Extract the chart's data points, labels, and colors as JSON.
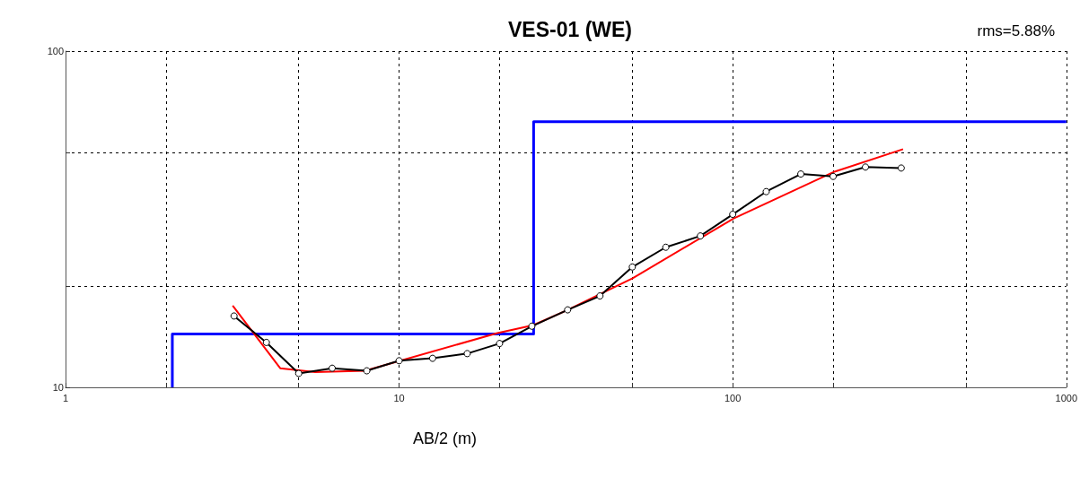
{
  "chart_data": {
    "type": "line",
    "title": "VES-01 (WE)",
    "xlabel": "AB/2 (m)",
    "annotations": [
      "rms=5.88%"
    ],
    "log": "xy",
    "xlim": [
      1,
      1000
    ],
    "ylim": [
      10,
      100
    ],
    "xticks": [
      1,
      {
        "value": 2,
        "label": null
      },
      {
        "value": 5,
        "label": null
      },
      10,
      {
        "value": 20,
        "label": null
      },
      {
        "value": 50,
        "label": null
      },
      100,
      {
        "value": 200,
        "label": null
      },
      {
        "value": 500,
        "label": null
      },
      1000
    ],
    "yticks": [
      10,
      {
        "value": 20,
        "label": null
      },
      {
        "value": 50,
        "label": null
      },
      100
    ],
    "grid": true,
    "series": [
      {
        "color": "#0000ff",
        "marker": "none",
        "x": [
          2.09,
          2.09,
          25.3,
          25.3,
          1000
        ],
        "values": [
          10,
          14.4,
          14.4,
          61.7,
          61.7
        ]
      },
      {
        "color": "#000000",
        "marker": "circle",
        "x": [
          3.2,
          4,
          5,
          6.3,
          8,
          10,
          12.6,
          16,
          20,
          25,
          32,
          40,
          50,
          63,
          80,
          100,
          126,
          160,
          200,
          250,
          320
        ],
        "values": [
          16.3,
          13.6,
          11.0,
          11.4,
          11.2,
          12.0,
          12.2,
          12.6,
          13.5,
          15.2,
          17.0,
          18.7,
          22.8,
          26.1,
          28.2,
          32.7,
          38.2,
          43.1,
          42.4,
          45.2,
          44.9
        ]
      },
      {
        "color": "#ff0000",
        "marker": "none",
        "x": [
          3.17,
          4.4,
          5.6,
          7.9,
          19.7,
          25.2,
          31.6,
          50.1,
          100.7,
          202,
          324
        ],
        "values": [
          17.5,
          11.4,
          11.1,
          11.2,
          14.5,
          15.3,
          16.9,
          21.1,
          31.8,
          43.8,
          51.1
        ]
      }
    ]
  }
}
